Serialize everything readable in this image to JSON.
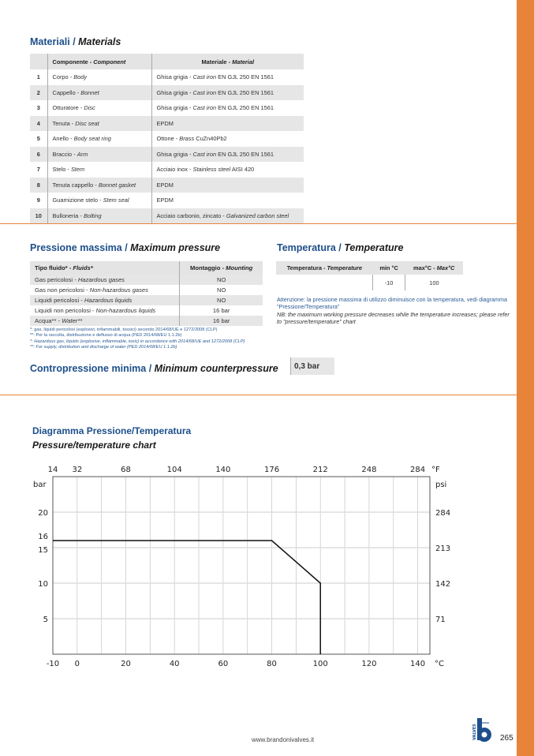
{
  "materials": {
    "title_it": "Materiali",
    "title_en": "Materials",
    "header": {
      "component_it": "Componente",
      "component_en": "Component",
      "material_it": "Materiale",
      "material_en": "Material"
    },
    "rows": [
      {
        "n": "1",
        "c_it": "Corpo",
        "c_en": "Body",
        "m_a": "Ghisa grigia - ",
        "m_i": "Cast iron",
        "m_b": " EN GJL 250 EN 1561"
      },
      {
        "n": "2",
        "c_it": "Cappello",
        "c_en": "Bonnet",
        "m_a": "Ghisa grigia - ",
        "m_i": "Cast iron",
        "m_b": " EN GJL 250 EN 1561"
      },
      {
        "n": "3",
        "c_it": "Otturatore",
        "c_en": "Disc",
        "m_a": "Ghisa grigia - ",
        "m_i": "Cast iron",
        "m_b": " EN GJL 250 EN 1561"
      },
      {
        "n": "4",
        "c_it": "Tenuta",
        "c_en": "Disc seat",
        "m_a": "EPDM",
        "m_i": "",
        "m_b": ""
      },
      {
        "n": "5",
        "c_it": "Anello",
        "c_en": "Body seat ring",
        "m_a": "Ottone - ",
        "m_i": "Brass",
        "m_b": " CuZn40Pb2"
      },
      {
        "n": "6",
        "c_it": "Braccio",
        "c_en": "Arm",
        "m_a": "Ghisa grigia - ",
        "m_i": "Cast iron",
        "m_b": " EN GJL 250 EN 1561"
      },
      {
        "n": "7",
        "c_it": "Stelo",
        "c_en": "Stem",
        "m_a": "Acciaio inox - ",
        "m_i": "Stainless steel",
        "m_b": " AISI 420"
      },
      {
        "n": "8",
        "c_it": "Tenuta cappello",
        "c_en": "Bonnet gasket",
        "m_a": "EPDM",
        "m_i": "",
        "m_b": ""
      },
      {
        "n": "9",
        "c_it": "Guarnizione stelo",
        "c_en": "Stem seal",
        "m_a": "EPDM",
        "m_i": "",
        "m_b": ""
      },
      {
        "n": "10",
        "c_it": "Bulloneria",
        "c_en": "Bolting",
        "m_a": "Acciaio carbonio, zincato - ",
        "m_i": "Galvanized carbon steel",
        "m_b": ""
      }
    ]
  },
  "pressure": {
    "title_it": "Pressione massima",
    "title_en": "Maximum pressure",
    "header": {
      "fluid_it": "Tipo fluido*",
      "fluid_en": "Fluids*",
      "mount_it": "Montaggio",
      "mount_en": "Mounting"
    },
    "rows": [
      {
        "it": "Gas pericolosi",
        "en": "Hazardous gases",
        "v": "NO"
      },
      {
        "it": "Gas non pericolosi",
        "en": "Non-hazardous gases",
        "v": "NO"
      },
      {
        "it": "Liquidi pericolosi",
        "en": "Hazardous liquids",
        "v": "NO"
      },
      {
        "it": "Liquidi non pericolosi",
        "en": "Non-hazardous liquids",
        "v": "16 bar"
      },
      {
        "it": "Acqua**",
        "en": "Water**",
        "v": "16 bar"
      }
    ],
    "footnotes": [
      "*: gas, liquidi pericolosi (esplosivi, infiammabili, tossici) secondo 2014/68/UE e 1272/2008 (CLP)",
      "**: Per la raccolta, distribuzione e deflusso di acqua (PED 2014/68/EU 1.1.2b)",
      "*: Hazardous gas, liquids (explosive, inflammable, toxic) in accordance with 2014/68/UE and 1272/2008 (CLP)",
      "**: For supply, distribution and discharge of water (PED 2014/68/EU 1.1.2b)"
    ]
  },
  "temperature": {
    "title_it": "Temperatura",
    "title_en": "Temperature",
    "header": {
      "t_it": "Temperatura",
      "t_en": "Temperature",
      "min": "min °C",
      "max_it": "max°C",
      "max_en": "Max°C"
    },
    "min": "-10",
    "max": "100",
    "note_it": "Attenzione: la pressione massima di utilizzo diminuisce con la temperatura, vedi diagramma \"Pressione/Temperatura\"",
    "note_en": "NB: the maximum working pressure decreases while the temperature increases; please refer to \"pressure/temperature\" chart"
  },
  "counterpressure": {
    "title_it": "Contropressione minima",
    "title_en": "Minimum counterpressure",
    "value": "0,3 bar"
  },
  "chart_data": {
    "type": "line",
    "title": "Diagramma Pressione/Temperatura",
    "subtitle": "Pressure/temperature chart",
    "xlabel": "°C",
    "x2label": "°F",
    "ylabel": "bar",
    "y2label": "psi",
    "xlim": [
      -10,
      145
    ],
    "ylim": [
      0,
      25
    ],
    "x_ticks": [
      -10,
      0,
      20,
      40,
      60,
      80,
      100,
      120,
      140
    ],
    "x2_ticks": [
      {
        "c": -10,
        "label": "14"
      },
      {
        "c": 0,
        "label": "32"
      },
      {
        "c": 20,
        "label": "68"
      },
      {
        "c": 40,
        "label": "104"
      },
      {
        "c": 60,
        "label": "140"
      },
      {
        "c": 80,
        "label": "176"
      },
      {
        "c": 100,
        "label": "212"
      },
      {
        "c": 120,
        "label": "248"
      },
      {
        "c": 140,
        "label": "284"
      }
    ],
    "y_ticks": [
      5,
      10,
      15,
      16,
      20
    ],
    "y2_ticks": [
      {
        "bar": 5,
        "label": "71"
      },
      {
        "bar": 10,
        "label": "142"
      },
      {
        "bar": 15,
        "label": "213"
      },
      {
        "bar": 20,
        "label": "284"
      }
    ],
    "grid": true,
    "series": [
      {
        "x": [
          -10,
          80,
          100,
          100
        ],
        "y": [
          16,
          16,
          10,
          0
        ]
      }
    ]
  },
  "footer": {
    "url": "www.brandonivalves.it",
    "page": "265",
    "logo_text": "VALVES"
  },
  "colors": {
    "accent": "#e8833a",
    "title_blue": "#1d4f8a",
    "row_gray": "#e6e6e6"
  }
}
